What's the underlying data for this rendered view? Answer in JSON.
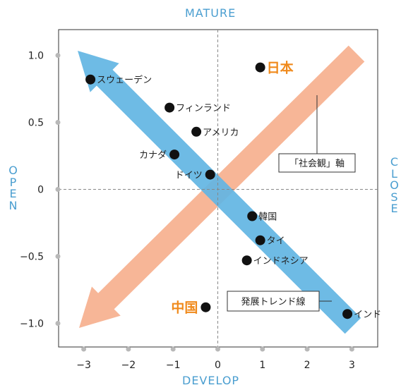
{
  "chart_data": {
    "type": "scatter",
    "labels": {
      "top": "MATURE",
      "bottom": "DEVELOP",
      "left": "OPEN",
      "right": "CLOSE"
    },
    "xlim": [
      -3.5,
      3.5
    ],
    "ylim": [
      -1.2,
      1.2
    ],
    "x_ticks": [
      "−3",
      "−2",
      "−1",
      "0",
      "1",
      "2",
      "3"
    ],
    "y_ticks": [
      "1.0",
      "0.5",
      "0",
      "−0.5",
      "−1.0"
    ],
    "points": [
      {
        "name": "スウェーデン",
        "x": -2.85,
        "y": 0.82
      },
      {
        "name": "フィンランド",
        "x": -1.08,
        "y": 0.61
      },
      {
        "name": "アメリカ",
        "x": -0.48,
        "y": 0.43
      },
      {
        "name": "カナダ",
        "x": -0.97,
        "y": 0.26
      },
      {
        "name": "ドイツ",
        "x": -0.17,
        "y": 0.11
      },
      {
        "name": "日本",
        "x": 0.95,
        "y": 0.91,
        "highlight": true
      },
      {
        "name": "韓国",
        "x": 0.77,
        "y": -0.2
      },
      {
        "name": "タイ",
        "x": 0.95,
        "y": -0.38
      },
      {
        "name": "インドネシア",
        "x": 0.65,
        "y": -0.53
      },
      {
        "name": "中国",
        "x": -0.27,
        "y": -0.88,
        "highlight": true
      },
      {
        "name": "インド",
        "x": 2.9,
        "y": -0.93
      }
    ],
    "annotations": {
      "trend": "発展トレンド線",
      "social": "「社会観」軸"
    },
    "colors": {
      "trend_arrow": "#62b5e3",
      "social_arrow": "#f6b08e",
      "highlight_text": "#f08a1c",
      "axis_words": "#4a9ed0",
      "tick_dots": "#b8b8b8"
    }
  }
}
